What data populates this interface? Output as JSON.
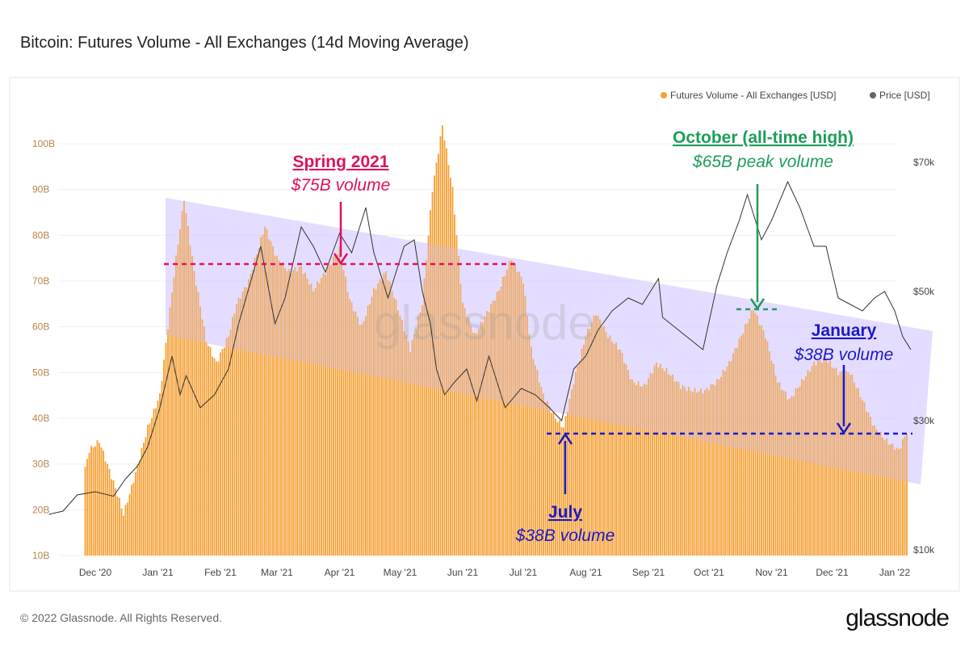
{
  "title": "Bitcoin: Futures Volume - All Exchanges (14d Moving Average)",
  "footer": {
    "copyright": "© 2022 Glassnode. All Rights Reserved.",
    "logo": "glassnode"
  },
  "watermark": "glassnode",
  "colors": {
    "volume": "#f5a033",
    "price": "#333333",
    "spring": "#e0115f",
    "october": "#1e9e5a",
    "lows": "#1a1ac8",
    "band": "#d9ccff"
  },
  "annotations": {
    "spring": {
      "title": "Spring 2021",
      "subtitle": "$75B volume",
      "level": 75
    },
    "october": {
      "title": "October (all-time high)",
      "subtitle": "$65B peak volume",
      "level": 65
    },
    "july": {
      "title": "July",
      "subtitle": "$38B volume",
      "level": 38
    },
    "january": {
      "title": "January",
      "subtitle": "$38B volume",
      "level": 38
    }
  },
  "chart_data": {
    "type": "bar",
    "title": "Bitcoin: Futures Volume - All Exchanges (14d Moving Average)",
    "legend": {
      "position": "top-right",
      "entries": [
        "Futures Volume - All Exchanges [USD]",
        "Price [USD]"
      ]
    },
    "x_ticks": [
      "Dec '20",
      "Jan '21",
      "Feb '21",
      "Mar '21",
      "Apr '21",
      "May '21",
      "Jun '21",
      "Jul '21",
      "Aug '21",
      "Sep '21",
      "Oct '21",
      "Nov '21",
      "Dec '21",
      "Jan '22"
    ],
    "y_left": {
      "ticks": [
        "10B",
        "20B",
        "30B",
        "40B",
        "50B",
        "60B",
        "70B",
        "80B",
        "90B",
        "100B"
      ],
      "range": [
        10,
        100
      ],
      "unit": "B USD"
    },
    "y_right": {
      "ticks": [
        "$10k",
        "$30k",
        "$50k",
        "$70k"
      ],
      "range": [
        10,
        70
      ],
      "unit": "k USD"
    },
    "grid": true,
    "series": [
      {
        "name": "Futures Volume - All Exchanges [USD]",
        "type": "bar",
        "points": [
          [
            "2020-11-26",
            29
          ],
          [
            "2020-11-28",
            33
          ],
          [
            "2020-12-03",
            35
          ],
          [
            "2020-12-10",
            26
          ],
          [
            "2020-12-13",
            22
          ],
          [
            "2020-12-15",
            19
          ],
          [
            "2020-12-21",
            28
          ],
          [
            "2020-12-27",
            38
          ],
          [
            "2021-01-02",
            45
          ],
          [
            "2021-01-06",
            60
          ],
          [
            "2021-01-10",
            75
          ],
          [
            "2021-01-14",
            88
          ],
          [
            "2021-01-19",
            72
          ],
          [
            "2021-01-25",
            57
          ],
          [
            "2021-01-30",
            52
          ],
          [
            "2021-02-05",
            58
          ],
          [
            "2021-02-09",
            65
          ],
          [
            "2021-02-15",
            70
          ],
          [
            "2021-02-23",
            82
          ],
          [
            "2021-03-01",
            75
          ],
          [
            "2021-03-07",
            72
          ],
          [
            "2021-03-13",
            73
          ],
          [
            "2021-03-19",
            68
          ],
          [
            "2021-03-25",
            72
          ],
          [
            "2021-04-01",
            77
          ],
          [
            "2021-04-06",
            66
          ],
          [
            "2021-04-12",
            60
          ],
          [
            "2021-04-18",
            68
          ],
          [
            "2021-04-24",
            72
          ],
          [
            "2021-04-30",
            64
          ],
          [
            "2021-05-06",
            55
          ],
          [
            "2021-05-12",
            65
          ],
          [
            "2021-05-17",
            90
          ],
          [
            "2021-05-22",
            104
          ],
          [
            "2021-05-27",
            90
          ],
          [
            "2021-06-01",
            65
          ],
          [
            "2021-06-07",
            58
          ],
          [
            "2021-06-13",
            63
          ],
          [
            "2021-06-19",
            68
          ],
          [
            "2021-06-25",
            75
          ],
          [
            "2021-07-01",
            70
          ],
          [
            "2021-07-05",
            55
          ],
          [
            "2021-07-11",
            45
          ],
          [
            "2021-07-17",
            40
          ],
          [
            "2021-07-21",
            38
          ],
          [
            "2021-07-26",
            48
          ],
          [
            "2021-08-01",
            58
          ],
          [
            "2021-08-06",
            63
          ],
          [
            "2021-08-12",
            58
          ],
          [
            "2021-08-18",
            55
          ],
          [
            "2021-08-24",
            48
          ],
          [
            "2021-08-30",
            47
          ],
          [
            "2021-09-05",
            52
          ],
          [
            "2021-09-11",
            50
          ],
          [
            "2021-09-17",
            47
          ],
          [
            "2021-09-23",
            46
          ],
          [
            "2021-09-29",
            46
          ],
          [
            "2021-10-05",
            48
          ],
          [
            "2021-10-11",
            52
          ],
          [
            "2021-10-17",
            58
          ],
          [
            "2021-10-23",
            64
          ],
          [
            "2021-10-29",
            58
          ],
          [
            "2021-11-04",
            48
          ],
          [
            "2021-11-10",
            44
          ],
          [
            "2021-11-16",
            48
          ],
          [
            "2021-11-22",
            52
          ],
          [
            "2021-11-28",
            53
          ],
          [
            "2021-12-04",
            50
          ],
          [
            "2021-12-10",
            50
          ],
          [
            "2021-12-16",
            44
          ],
          [
            "2021-12-22",
            38
          ],
          [
            "2021-12-28",
            35
          ],
          [
            "2022-01-03",
            33
          ],
          [
            "2022-01-07",
            37
          ]
        ]
      },
      {
        "name": "Price [USD]",
        "type": "line",
        "points": [
          [
            "2020-11-08",
            15.5
          ],
          [
            "2020-11-15",
            16
          ],
          [
            "2020-11-22",
            18.5
          ],
          [
            "2020-12-01",
            19
          ],
          [
            "2020-12-10",
            18.3
          ],
          [
            "2020-12-16",
            21
          ],
          [
            "2020-12-22",
            23
          ],
          [
            "2020-12-27",
            26
          ],
          [
            "2021-01-02",
            32
          ],
          [
            "2021-01-08",
            40
          ],
          [
            "2021-01-12",
            34
          ],
          [
            "2021-01-15",
            37
          ],
          [
            "2021-01-22",
            32
          ],
          [
            "2021-01-29",
            34
          ],
          [
            "2021-02-05",
            38
          ],
          [
            "2021-02-10",
            45
          ],
          [
            "2021-02-21",
            57
          ],
          [
            "2021-02-28",
            45
          ],
          [
            "2021-03-05",
            49
          ],
          [
            "2021-03-13",
            60
          ],
          [
            "2021-03-19",
            57
          ],
          [
            "2021-03-25",
            53
          ],
          [
            "2021-04-01",
            59
          ],
          [
            "2021-04-07",
            56
          ],
          [
            "2021-04-14",
            63
          ],
          [
            "2021-04-18",
            56
          ],
          [
            "2021-04-25",
            49
          ],
          [
            "2021-05-03",
            57
          ],
          [
            "2021-05-08",
            58
          ],
          [
            "2021-05-12",
            50
          ],
          [
            "2021-05-16",
            45
          ],
          [
            "2021-05-19",
            38
          ],
          [
            "2021-05-23",
            34
          ],
          [
            "2021-05-28",
            36
          ],
          [
            "2021-06-03",
            38
          ],
          [
            "2021-06-08",
            33
          ],
          [
            "2021-06-14",
            40
          ],
          [
            "2021-06-22",
            32
          ],
          [
            "2021-06-30",
            35
          ],
          [
            "2021-07-07",
            34
          ],
          [
            "2021-07-14",
            32
          ],
          [
            "2021-07-20",
            30
          ],
          [
            "2021-07-26",
            38
          ],
          [
            "2021-08-01",
            40
          ],
          [
            "2021-08-07",
            44
          ],
          [
            "2021-08-14",
            47
          ],
          [
            "2021-08-22",
            49
          ],
          [
            "2021-08-29",
            48
          ],
          [
            "2021-09-06",
            52
          ],
          [
            "2021-09-08",
            46
          ],
          [
            "2021-09-20",
            43
          ],
          [
            "2021-09-28",
            41
          ],
          [
            "2021-10-05",
            51
          ],
          [
            "2021-10-10",
            56
          ],
          [
            "2021-10-16",
            61
          ],
          [
            "2021-10-20",
            65
          ],
          [
            "2021-10-27",
            58
          ],
          [
            "2021-11-01",
            61
          ],
          [
            "2021-11-09",
            67
          ],
          [
            "2021-11-15",
            63
          ],
          [
            "2021-11-22",
            57
          ],
          [
            "2021-11-28",
            57
          ],
          [
            "2021-12-04",
            49
          ],
          [
            "2021-12-10",
            48
          ],
          [
            "2021-12-16",
            47
          ],
          [
            "2021-12-22",
            49
          ],
          [
            "2021-12-27",
            50
          ],
          [
            "2022-01-01",
            47
          ],
          [
            "2022-01-05",
            43
          ],
          [
            "2022-01-09",
            41
          ]
        ]
      }
    ]
  }
}
